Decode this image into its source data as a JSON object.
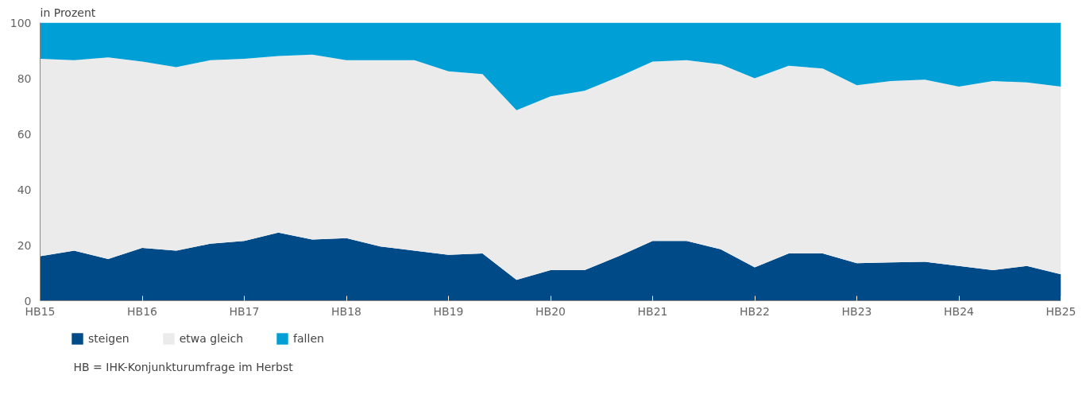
{
  "chart_data": {
    "type": "area",
    "stacked": true,
    "ylabel": "in Prozent",
    "categories": [
      "HB15",
      null,
      null,
      "HB16",
      null,
      null,
      "HB17",
      null,
      null,
      "HB18",
      null,
      null,
      "HB19",
      null,
      null,
      "HB20",
      null,
      null,
      "HB21",
      null,
      null,
      "HB22",
      null,
      null,
      "HB23",
      null,
      null,
      "HB24",
      null,
      null,
      "HB25"
    ],
    "series": [
      {
        "name": "steigen",
        "color": "#004b87",
        "values": [
          16,
          18,
          15,
          19,
          18,
          20.5,
          21.5,
          24.5,
          22,
          22.5,
          19.5,
          18,
          16.5,
          17,
          7.5,
          11,
          11,
          16,
          21.5,
          21.5,
          18.5,
          12,
          17,
          17,
          13.5,
          13.8,
          14,
          12.5,
          11,
          12.5,
          9.5
        ]
      },
      {
        "name": "etwa gleich",
        "color": "#ebebeb",
        "values": [
          71,
          68.5,
          72.5,
          67,
          66,
          66,
          65.5,
          63.5,
          66.5,
          64,
          67,
          68.5,
          66,
          64.5,
          61,
          62.5,
          64.5,
          64.5,
          64.5,
          65,
          66.5,
          68,
          67.5,
          66.5,
          64,
          65.2,
          65.5,
          64.5,
          68,
          66,
          67.5
        ]
      },
      {
        "name": "fallen",
        "color": "#009fd6",
        "values": [
          13,
          13.5,
          12.5,
          14,
          16,
          13.5,
          13,
          12,
          11.5,
          13.5,
          13.5,
          13.5,
          17.5,
          18.5,
          31.5,
          26.5,
          24.5,
          19.5,
          14,
          13.5,
          15,
          20,
          15.5,
          16.5,
          22.5,
          21,
          20.5,
          23,
          21,
          21.5,
          23
        ]
      }
    ],
    "ylim": [
      0,
      100
    ],
    "yticks": [
      0,
      20,
      40,
      60,
      80,
      100
    ],
    "legend": "bottom",
    "annotations": [
      "HB = IHK-Konjunkturumfrage im Herbst"
    ]
  }
}
